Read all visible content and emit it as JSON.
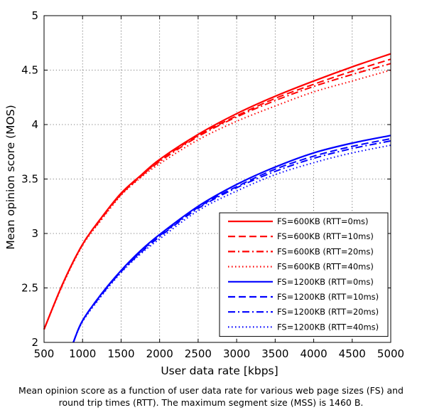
{
  "caption": "Mean opinion score as a function of user data rate for various web page sizes (FS) and round trip times (RTT). The maximum segment size (MSS) is 1460 B.",
  "chart_data": {
    "type": "line",
    "title": "",
    "xlabel": "User data rate [kbps]",
    "ylabel": "Mean opinion score (MOS)",
    "xlim": [
      500,
      5000
    ],
    "ylim": [
      2,
      5
    ],
    "xticks": [
      500,
      1000,
      1500,
      2000,
      2500,
      3000,
      3500,
      4000,
      4500,
      5000
    ],
    "yticks": [
      2,
      2.5,
      3,
      3.5,
      4,
      4.5,
      5
    ],
    "ytick_labels": [
      "2",
      "2.5",
      "3",
      "3.5",
      "4",
      "4.5",
      "5"
    ],
    "grid": true,
    "legend_position": "bottom-right",
    "x": [
      500,
      750,
      1000,
      1250,
      1500,
      1750,
      2000,
      2500,
      3000,
      3500,
      4000,
      4500,
      5000
    ],
    "series": [
      {
        "name": "FS=600KB (RTT=0ms)",
        "color": "#ff0000",
        "dash": "solid",
        "values": [
          2.12,
          2.55,
          2.9,
          3.15,
          3.37,
          3.53,
          3.68,
          3.91,
          4.1,
          4.26,
          4.4,
          4.53,
          4.65
        ]
      },
      {
        "name": "FS=600KB (RTT=10ms)",
        "color": "#ff0000",
        "dash": "dashed",
        "values": [
          2.12,
          2.55,
          2.9,
          3.15,
          3.36,
          3.52,
          3.67,
          3.9,
          4.08,
          4.24,
          4.37,
          4.49,
          4.6
        ]
      },
      {
        "name": "FS=600KB (RTT=20ms)",
        "color": "#ff0000",
        "dash": "dashdot",
        "values": [
          2.12,
          2.55,
          2.9,
          3.14,
          3.36,
          3.52,
          3.66,
          3.89,
          4.07,
          4.22,
          4.35,
          4.46,
          4.56
        ]
      },
      {
        "name": "FS=600KB (RTT=40ms)",
        "color": "#ff0000",
        "dash": "dotted",
        "values": [
          2.12,
          2.54,
          2.89,
          3.13,
          3.35,
          3.51,
          3.64,
          3.86,
          4.03,
          4.17,
          4.3,
          4.4,
          4.5
        ]
      },
      {
        "name": "FS=1200KB (RTT=0ms)",
        "color": "#0000ff",
        "dash": "solid",
        "x_start": 880,
        "values": [
          null,
          null,
          2.2,
          2.45,
          2.66,
          2.84,
          2.99,
          3.25,
          3.45,
          3.61,
          3.74,
          3.83,
          3.9
        ]
      },
      {
        "name": "FS=1200KB (RTT=10ms)",
        "color": "#0000ff",
        "dash": "dashed",
        "x_start": 880,
        "values": [
          null,
          null,
          2.2,
          2.45,
          2.65,
          2.83,
          2.98,
          3.24,
          3.43,
          3.59,
          3.71,
          3.8,
          3.87
        ]
      },
      {
        "name": "FS=1200KB (RTT=20ms)",
        "color": "#0000ff",
        "dash": "dashdot",
        "x_start": 880,
        "values": [
          null,
          null,
          2.2,
          2.44,
          2.65,
          2.82,
          2.97,
          3.23,
          3.42,
          3.57,
          3.69,
          3.78,
          3.85
        ]
      },
      {
        "name": "FS=1200KB (RTT=40ms)",
        "color": "#0000ff",
        "dash": "dotted",
        "x_start": 880,
        "values": [
          null,
          null,
          2.19,
          2.43,
          2.64,
          2.81,
          2.95,
          3.21,
          3.39,
          3.54,
          3.65,
          3.74,
          3.81
        ]
      }
    ],
    "x_start_values": {
      "red": 500,
      "blue": 880
    },
    "x_start_y": {
      "red": 2.12,
      "blue": 2.0
    }
  }
}
